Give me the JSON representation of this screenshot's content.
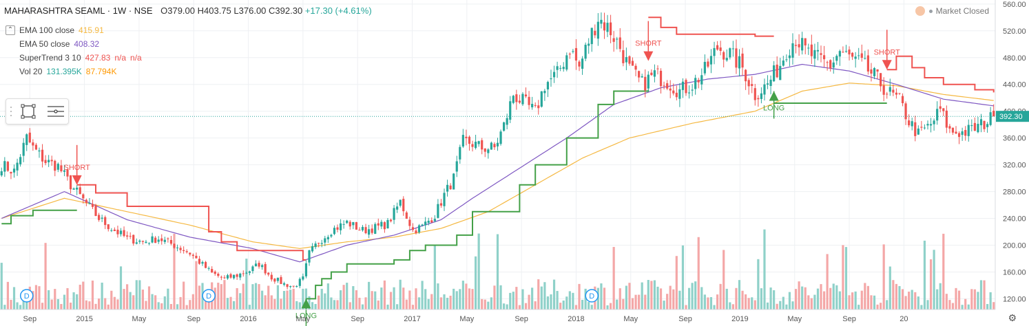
{
  "header": {
    "symbol": "MAHARASHTRA SEAML · 1W · NSE",
    "open": "O379.00",
    "high": "H403.75",
    "low": "L376.00",
    "close": "C392.30",
    "change": "+17.30 (+4.61%)"
  },
  "status": {
    "market": "Market Closed"
  },
  "indicators": [
    {
      "name": "EMA 100 close",
      "v1": "415.91",
      "v2": "",
      "v3": "",
      "color": "#f5b841"
    },
    {
      "name": "EMA 50 close",
      "v1": "408.32",
      "v2": "",
      "v3": "",
      "color": "#7e57c2"
    },
    {
      "name": "SuperTrend 3 10",
      "v1": "427.83",
      "v2": "n/a",
      "v3": "n/a",
      "color": "#ef5350"
    },
    {
      "name": "Vol 20",
      "v1": "131.395K",
      "v2": "87.794K",
      "v3": "",
      "color": "#26a69a",
      "color2": "#ff9800"
    }
  ],
  "colors": {
    "up": "#26a69a",
    "down": "#ef5350",
    "ema100": "#f5b841",
    "ema50": "#7e57c2",
    "st_up": "#43a047",
    "st_down": "#ef5350",
    "vol_up": "#8fd1c9",
    "vol_down": "#f4a7a7",
    "grid": "#eef0f3",
    "axis_text": "#555555",
    "last_price_bg": "#26a69a"
  },
  "icons": [
    "rectangle-tool-icon",
    "horizontal-lines-icon",
    "settings-gear-icon",
    "dividend-marker-icon"
  ],
  "chart_data": {
    "type": "candlestick",
    "price_axis": {
      "range": [
        104,
        566
      ],
      "ticks": [
        120,
        160,
        200,
        240,
        280,
        320,
        360,
        400,
        440,
        480,
        520,
        560
      ]
    },
    "time_axis": {
      "labels": [
        "Sep",
        "2015",
        "May",
        "Sep",
        "2016",
        "May",
        "Sep",
        "2017",
        "May",
        "Sep",
        "2018",
        "May",
        "Sep",
        "2019",
        "May",
        "Sep",
        "20"
      ]
    },
    "last_price": 392.3,
    "ohlc_key": [
      [
        0,
        320
      ],
      [
        4,
        310
      ],
      [
        8,
        360
      ],
      [
        10,
        345
      ],
      [
        14,
        325
      ],
      [
        18,
        318
      ],
      [
        22,
        290
      ],
      [
        27,
        262
      ],
      [
        31,
        240
      ],
      [
        35,
        225
      ],
      [
        40,
        210
      ],
      [
        45,
        205
      ],
      [
        50,
        210
      ],
      [
        55,
        200
      ],
      [
        60,
        188
      ],
      [
        63,
        175
      ],
      [
        67,
        158
      ],
      [
        71,
        150
      ],
      [
        75,
        155
      ],
      [
        79,
        162
      ],
      [
        82,
        172
      ],
      [
        86,
        152
      ],
      [
        90,
        142
      ],
      [
        93,
        138
      ],
      [
        96,
        150
      ],
      [
        98,
        188
      ],
      [
        101,
        205
      ],
      [
        105,
        222
      ],
      [
        110,
        234
      ],
      [
        115,
        222
      ],
      [
        119,
        226
      ],
      [
        123,
        232
      ],
      [
        127,
        265
      ],
      [
        131,
        222
      ],
      [
        134,
        228
      ],
      [
        138,
        245
      ],
      [
        141,
        275
      ],
      [
        144,
        300
      ],
      [
        147,
        355
      ],
      [
        150,
        352
      ],
      [
        153,
        345
      ],
      [
        157,
        345
      ],
      [
        160,
        378
      ],
      [
        163,
        425
      ],
      [
        167,
        410
      ],
      [
        170,
        398
      ],
      [
        173,
        440
      ],
      [
        177,
        455
      ],
      [
        181,
        495
      ],
      [
        184,
        465
      ],
      [
        187,
        505
      ],
      [
        190,
        540
      ],
      [
        194,
        520
      ],
      [
        197,
        495
      ],
      [
        200,
        462
      ],
      [
        204,
        440
      ],
      [
        208,
        455
      ],
      [
        212,
        445
      ],
      [
        216,
        430
      ],
      [
        220,
        440
      ],
      [
        224,
        460
      ],
      [
        228,
        495
      ],
      [
        232,
        485
      ],
      [
        236,
        465
      ],
      [
        240,
        425
      ],
      [
        244,
        440
      ],
      [
        248,
        470
      ],
      [
        250,
        492
      ],
      [
        253,
        510
      ],
      [
        256,
        490
      ],
      [
        260,
        478
      ],
      [
        264,
        468
      ],
      [
        267,
        490
      ],
      [
        270,
        480
      ],
      [
        274,
        470
      ],
      [
        278,
        452
      ],
      [
        282,
        430
      ],
      [
        286,
        415
      ],
      [
        289,
        385
      ],
      [
        292,
        365
      ],
      [
        296,
        380
      ],
      [
        299,
        402
      ],
      [
        302,
        370
      ],
      [
        306,
        368
      ],
      [
        309,
        372
      ],
      [
        313,
        382
      ],
      [
        316,
        392
      ]
    ],
    "ema100": [
      [
        0,
        240
      ],
      [
        20,
        270
      ],
      [
        40,
        250
      ],
      [
        60,
        230
      ],
      [
        80,
        205
      ],
      [
        95,
        195
      ],
      [
        110,
        205
      ],
      [
        125,
        212
      ],
      [
        140,
        225
      ],
      [
        155,
        250
      ],
      [
        170,
        290
      ],
      [
        185,
        330
      ],
      [
        200,
        360
      ],
      [
        220,
        382
      ],
      [
        240,
        400
      ],
      [
        255,
        430
      ],
      [
        270,
        442
      ],
      [
        285,
        438
      ],
      [
        300,
        425
      ],
      [
        316,
        416
      ]
    ],
    "ema50": [
      [
        0,
        240
      ],
      [
        20,
        280
      ],
      [
        40,
        238
      ],
      [
        60,
        212
      ],
      [
        80,
        195
      ],
      [
        95,
        175
      ],
      [
        110,
        200
      ],
      [
        125,
        215
      ],
      [
        140,
        238
      ],
      [
        150,
        270
      ],
      [
        165,
        315
      ],
      [
        180,
        360
      ],
      [
        195,
        410
      ],
      [
        210,
        435
      ],
      [
        225,
        448
      ],
      [
        240,
        455
      ],
      [
        255,
        470
      ],
      [
        270,
        460
      ],
      [
        285,
        440
      ],
      [
        300,
        418
      ],
      [
        316,
        408
      ]
    ],
    "supertrend_segments": [
      {
        "trend": "up",
        "points": [
          [
            0,
            232
          ],
          [
            3,
            244
          ],
          [
            10,
            252
          ],
          [
            24,
            252
          ]
        ]
      },
      {
        "trend": "down",
        "points": [
          [
            24,
            290
          ],
          [
            30,
            278
          ],
          [
            40,
            258
          ],
          [
            60,
            258
          ],
          [
            66,
            220
          ],
          [
            70,
            205
          ],
          [
            75,
            192
          ],
          [
            92,
            192
          ],
          [
            96,
            178
          ],
          [
            97,
            178
          ]
        ]
      },
      {
        "trend": "up",
        "points": [
          [
            97,
            120
          ],
          [
            100,
            140
          ],
          [
            102,
            150
          ],
          [
            105,
            160
          ],
          [
            110,
            172
          ],
          [
            125,
            178
          ],
          [
            130,
            192
          ],
          [
            135,
            200
          ],
          [
            145,
            215
          ],
          [
            150,
            250
          ],
          [
            165,
            290
          ],
          [
            170,
            320
          ],
          [
            180,
            360
          ],
          [
            190,
            410
          ],
          [
            195,
            430
          ],
          [
            206,
            432
          ]
        ]
      },
      {
        "trend": "down",
        "points": [
          [
            206,
            540
          ],
          [
            210,
            525
          ],
          [
            215,
            515
          ],
          [
            240,
            512
          ],
          [
            246,
            512
          ]
        ]
      },
      {
        "trend": "up",
        "points": [
          [
            246,
            412
          ],
          [
            248,
            412
          ],
          [
            282,
            412
          ]
        ]
      },
      {
        "trend": "down",
        "points": [
          [
            282,
            462
          ],
          [
            285,
            482
          ],
          [
            290,
            465
          ],
          [
            294,
            450
          ],
          [
            300,
            440
          ],
          [
            310,
            432
          ],
          [
            316,
            428
          ]
        ]
      }
    ],
    "signals": [
      {
        "label": "SHORT",
        "bar": 24,
        "price": 290,
        "type": "short"
      },
      {
        "label": "LONG",
        "bar": 97,
        "price": 120,
        "type": "long"
      },
      {
        "label": "SHORT",
        "bar": 206,
        "price": 475,
        "type": "short"
      },
      {
        "label": "LONG",
        "bar": 246,
        "price": 430,
        "type": "long"
      },
      {
        "label": "SHORT",
        "bar": 282,
        "price": 462,
        "type": "short"
      }
    ],
    "dividends": [
      {
        "bar": 8,
        "label": "D"
      },
      {
        "bar": 66,
        "label": "D"
      },
      {
        "bar": 188,
        "label": "D"
      }
    ]
  }
}
